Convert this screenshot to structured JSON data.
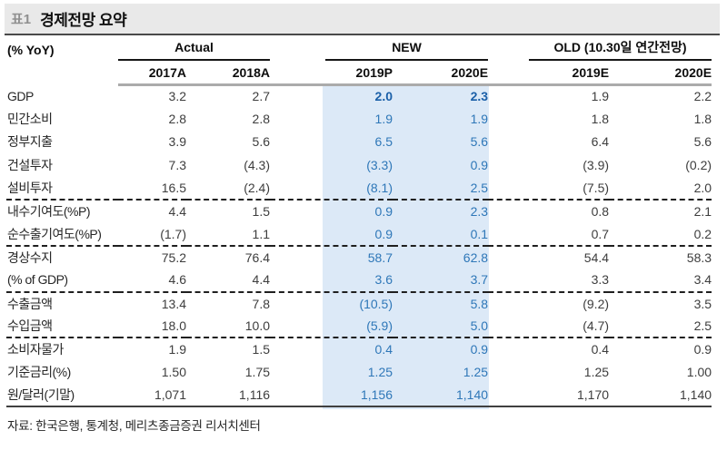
{
  "title": {
    "tag": "표1",
    "text": "경제전망 요약"
  },
  "table": {
    "header": {
      "unit": "(% YoY)",
      "groups": [
        {
          "label": "Actual"
        },
        {
          "label": "NEW"
        },
        {
          "label": "OLD (10.30일 연간전망)"
        }
      ],
      "columns": [
        "2017A",
        "2018A",
        "2019P",
        "2020E",
        "2019E",
        "2020E"
      ]
    },
    "rows": [
      {
        "label": "GDP",
        "values": [
          "3.2",
          "2.7",
          "2.0",
          "2.3",
          "1.9",
          "2.2"
        ],
        "bold_new": true
      },
      {
        "label": "민간소비",
        "values": [
          "2.8",
          "2.8",
          "1.9",
          "1.9",
          "1.8",
          "1.8"
        ]
      },
      {
        "label": "정부지출",
        "values": [
          "3.9",
          "5.6",
          "6.5",
          "5.6",
          "6.4",
          "5.6"
        ]
      },
      {
        "label": "건설투자",
        "values": [
          "7.3",
          "(4.3)",
          "(3.3)",
          "0.9",
          "(3.9)",
          "(0.2)"
        ]
      },
      {
        "label": "설비투자",
        "values": [
          "16.5",
          "(2.4)",
          "(8.1)",
          "2.5",
          "(7.5)",
          "2.0"
        ],
        "dashed": true
      },
      {
        "label": "내수기여도(%P)",
        "values": [
          "4.4",
          "1.5",
          "0.9",
          "2.3",
          "0.8",
          "2.1"
        ]
      },
      {
        "label": "순수출기여도(%P)",
        "values": [
          "(1.7)",
          "1.1",
          "0.9",
          "0.1",
          "0.7",
          "0.2"
        ],
        "dashed": true
      },
      {
        "label": "경상수지",
        "values": [
          "75.2",
          "76.4",
          "58.7",
          "62.8",
          "54.4",
          "58.3"
        ]
      },
      {
        "label": "(% of GDP)",
        "values": [
          "4.6",
          "4.4",
          "3.6",
          "3.7",
          "3.3",
          "3.4"
        ],
        "dashed": true
      },
      {
        "label": "수출금액",
        "values": [
          "13.4",
          "7.8",
          "(10.5)",
          "5.8",
          "(9.2)",
          "3.5"
        ]
      },
      {
        "label": "수입금액",
        "values": [
          "18.0",
          "10.0",
          "(5.9)",
          "5.0",
          "(4.7)",
          "2.5"
        ],
        "dashed": true
      },
      {
        "label": "소비자물가",
        "values": [
          "1.9",
          "1.5",
          "0.4",
          "0.9",
          "0.4",
          "0.9"
        ]
      },
      {
        "label": "기준금리(%)",
        "values": [
          "1.50",
          "1.75",
          "1.25",
          "1.25",
          "1.25",
          "1.00"
        ]
      },
      {
        "label": "원/달러(기말)",
        "values": [
          "1,071",
          "1,116",
          "1,156",
          "1,140",
          "1,170",
          "1,140"
        ],
        "last": true
      }
    ]
  },
  "source": "자료: 한국은행, 통계청, 메리츠종금증권 리서치센터",
  "colors": {
    "accent_blue": "#2e77b8",
    "accent_blue_bold": "#1a5fa8",
    "new_highlight_bg": "#dce9f7",
    "titlebar_bg": "#e9e9e9",
    "thick_rule_gray": "#ababab"
  }
}
